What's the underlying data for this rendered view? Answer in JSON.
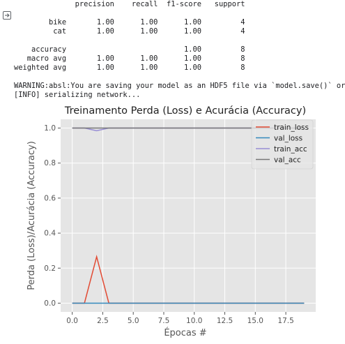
{
  "output_icon": "output-toggle-icon",
  "console": {
    "lines": [
      "              precision    recall  f1-score   support",
      "",
      "        bike       1.00      1.00      1.00         4",
      "         cat       1.00      1.00      1.00         4",
      "",
      "    accuracy                           1.00         8",
      "   macro avg       1.00      1.00      1.00         8",
      "weighted avg       1.00      1.00      1.00         8",
      "",
      "WARNING:absl:You are saving your model as an HDF5 file via `model.save()` or",
      "[INFO] serializing network..."
    ]
  },
  "chart_data": {
    "type": "line",
    "title": "Treinamento Perda (Loss) e Acurácia (Accuracy)",
    "xlabel": "Épocas #",
    "ylabel": "Perda (Loss)/Acurácia (Accuracy)",
    "xlim": [
      -0.95,
      19.95
    ],
    "ylim": [
      -0.05,
      1.05
    ],
    "x_ticks": [
      0.0,
      2.5,
      5.0,
      7.5,
      10.0,
      12.5,
      15.0,
      17.5
    ],
    "x_tick_labels": [
      "0.0",
      "2.5",
      "5.0",
      "7.5",
      "10.0",
      "12.5",
      "15.0",
      "17.5"
    ],
    "y_ticks": [
      0.0,
      0.2,
      0.4,
      0.6,
      0.8,
      1.0
    ],
    "y_tick_labels": [
      "0.0",
      "0.2",
      "0.4",
      "0.6",
      "0.8",
      "1.0"
    ],
    "grid": true,
    "legend_position": "top-right",
    "background": "#e5e5e5",
    "x": [
      0,
      1,
      2,
      3,
      4,
      5,
      6,
      7,
      8,
      9,
      10,
      11,
      12,
      13,
      14,
      15,
      16,
      17,
      18,
      19
    ],
    "series": [
      {
        "name": "train_loss",
        "color": "#e24a33",
        "values": [
          0.0,
          0.0,
          0.265,
          0.0,
          0.0,
          0.0,
          0.0,
          0.0,
          0.0,
          0.0,
          0.0,
          0.0,
          0.0,
          0.0,
          0.0,
          0.0,
          0.0,
          0.0,
          0.0,
          0.0
        ]
      },
      {
        "name": "val_loss",
        "color": "#348abd",
        "values": [
          0.0,
          0.0,
          0.0,
          0.0,
          0.0,
          0.0,
          0.0,
          0.0,
          0.0,
          0.0,
          0.0,
          0.0,
          0.0,
          0.0,
          0.0,
          0.0,
          0.0,
          0.0,
          0.0,
          0.0
        ]
      },
      {
        "name": "train_acc",
        "color": "#988ed5",
        "values": [
          1.0,
          1.0,
          0.985,
          1.0,
          1.0,
          1.0,
          1.0,
          1.0,
          1.0,
          1.0,
          1.0,
          1.0,
          1.0,
          1.0,
          1.0,
          1.0,
          1.0,
          1.0,
          1.0,
          1.0
        ]
      },
      {
        "name": "val_acc",
        "color": "#777777",
        "values": [
          1.0,
          1.0,
          1.0,
          1.0,
          1.0,
          1.0,
          1.0,
          1.0,
          1.0,
          1.0,
          1.0,
          1.0,
          1.0,
          1.0,
          1.0,
          1.0,
          1.0,
          1.0,
          1.0,
          1.0
        ]
      }
    ]
  }
}
